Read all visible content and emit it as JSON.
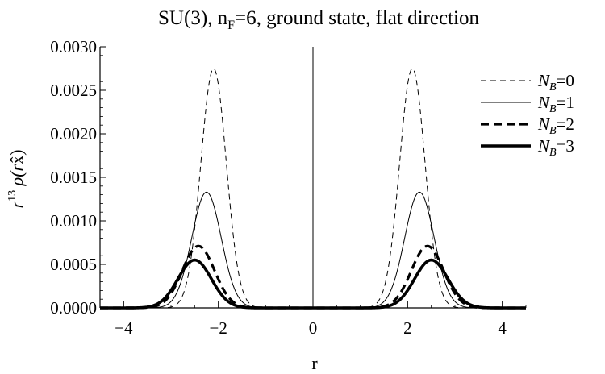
{
  "chart_data": {
    "type": "line",
    "title": "SU(3), n F=6, ground state, flat direction",
    "title_parts": {
      "pre": "SU(3), n",
      "sub": "F",
      "post": "=6, ground state, flat direction"
    },
    "xlabel": "r",
    "ylabel": {
      "pre": "r",
      "sup": "13",
      "post": " ρ(r",
      "hat": "x̂",
      "close": ")"
    },
    "xlim": [
      -4.5,
      4.5
    ],
    "ylim": [
      0,
      0.003
    ],
    "xticks": [
      -4,
      -2,
      0,
      2,
      4
    ],
    "xtick_labels": [
      "−4",
      "−2",
      "0",
      "2",
      "4"
    ],
    "yticks": [
      0,
      0.0005,
      0.001,
      0.0015,
      0.002,
      0.0025,
      0.003
    ],
    "ytick_labels": [
      "0.0000",
      "0.0005",
      "0.0010",
      "0.0015",
      "0.0020",
      "0.0025",
      "0.0030"
    ],
    "legend_position": "right",
    "grid": false,
    "series": [
      {
        "name": "N_B=0",
        "label_main": "N",
        "label_sub": "B",
        "label_tail": "=0",
        "style": "thin-dashed",
        "peak_r": 2.1,
        "peak": 0.00275,
        "width": 0.38,
        "symmetric": true
      },
      {
        "name": "N_B=1",
        "label_main": "N",
        "label_sub": "B",
        "label_tail": "=1",
        "style": "thin-solid",
        "peak_r": 2.25,
        "peak": 0.00133,
        "width": 0.44,
        "symmetric": true
      },
      {
        "name": "N_B=2",
        "label_main": "N",
        "label_sub": "B",
        "label_tail": "=2",
        "style": "thick-dashed",
        "peak_r": 2.42,
        "peak": 0.00071,
        "width": 0.48,
        "symmetric": true
      },
      {
        "name": "N_B=3",
        "label_main": "N",
        "label_sub": "B",
        "label_tail": "=3",
        "style": "thick-solid",
        "peak_r": 2.5,
        "peak": 0.00055,
        "width": 0.5,
        "symmetric": true
      }
    ]
  }
}
